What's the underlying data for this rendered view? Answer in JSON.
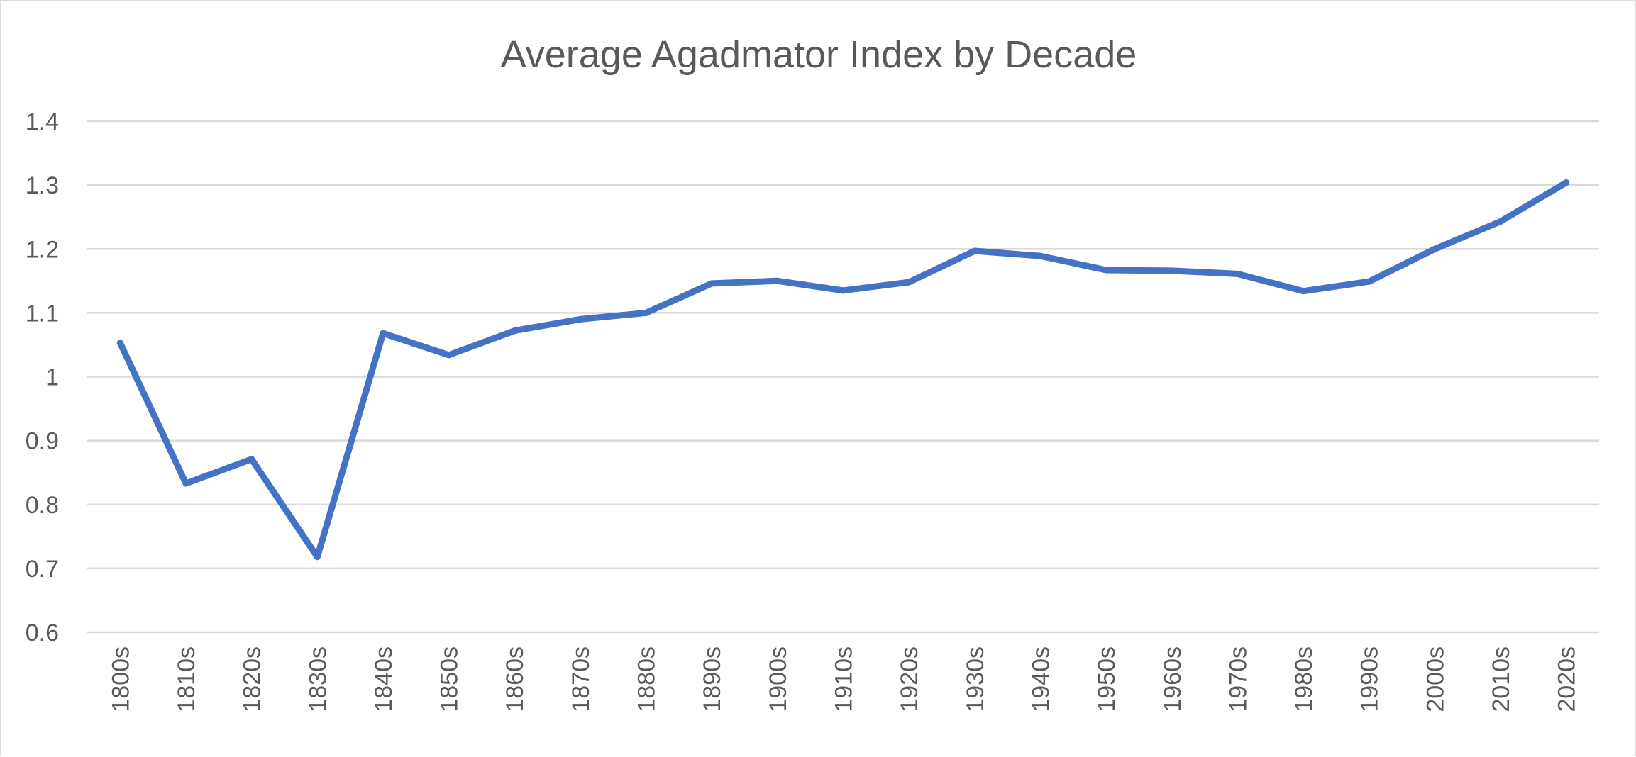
{
  "chart_data": {
    "type": "line",
    "title": "Average Agadmator Index by Decade",
    "xlabel": "",
    "ylabel": "",
    "categories": [
      "1800s",
      "1810s",
      "1820s",
      "1830s",
      "1840s",
      "1850s",
      "1860s",
      "1870s",
      "1880s",
      "1890s",
      "1900s",
      "1910s",
      "1920s",
      "1930s",
      "1940s",
      "1950s",
      "1960s",
      "1970s",
      "1980s",
      "1990s",
      "2000s",
      "2010s",
      "2020s"
    ],
    "series": [
      {
        "values": [
          1.053,
          0.833,
          0.871,
          0.718,
          1.068,
          1.034,
          1.072,
          1.09,
          1.1,
          1.146,
          1.15,
          1.135,
          1.148,
          1.197,
          1.189,
          1.167,
          1.166,
          1.161,
          1.134,
          1.149,
          1.2,
          1.243,
          1.304
        ],
        "color": "#4472c4"
      }
    ],
    "ylim": [
      0.6,
      1.4
    ],
    "yticks": [
      "0.6",
      "0.7",
      "0.8",
      "0.9",
      "1",
      "1.1",
      "1.2",
      "1.3",
      "1.4"
    ],
    "grid": true,
    "legend": "none"
  }
}
